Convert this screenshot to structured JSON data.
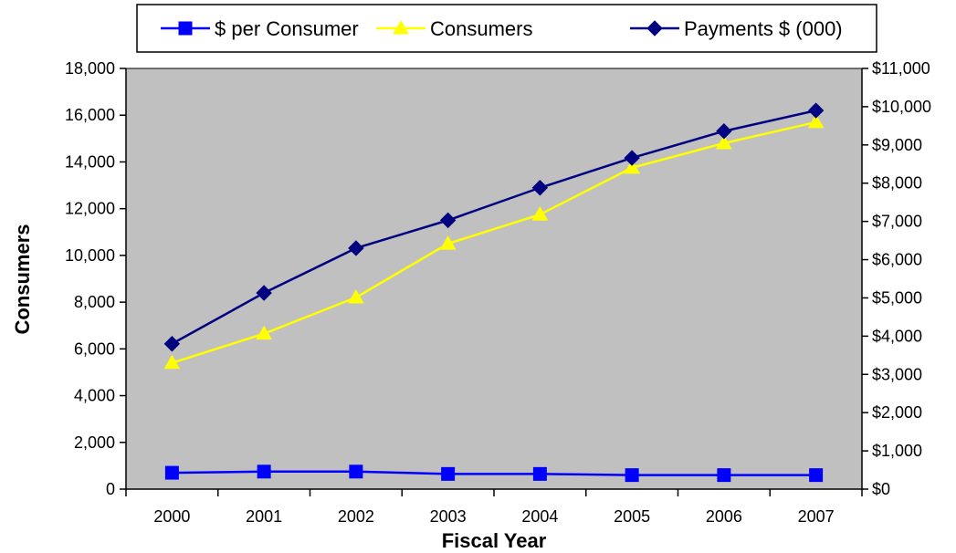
{
  "chart_data": {
    "type": "line",
    "title": "",
    "xlabel": "Fiscal Year",
    "ylabel": "Consumers",
    "y2label": "",
    "categories": [
      "2000",
      "2001",
      "2002",
      "2003",
      "2004",
      "2005",
      "2006",
      "2007"
    ],
    "ylim": [
      0,
      18000
    ],
    "yticks": [
      "0",
      "2,000",
      "4,000",
      "6,000",
      "8,000",
      "10,000",
      "12,000",
      "14,000",
      "16,000",
      "18,000"
    ],
    "y2lim": [
      0,
      11000
    ],
    "y2ticks": [
      "$0",
      "$1,000",
      "$2,000",
      "$3,000",
      "$4,000",
      "$5,000",
      "$6,000",
      "$7,000",
      "$8,000",
      "$9,000",
      "$10,000",
      "$11,000"
    ],
    "legend_position": "top",
    "plot_background": "#c0c0c0",
    "series": [
      {
        "name": "$ per Consumer",
        "axis": "left",
        "color": "#0000ff",
        "marker": "square",
        "values": [
          700,
          750,
          750,
          650,
          650,
          600,
          600,
          600
        ]
      },
      {
        "name": "Consumers",
        "axis": "left",
        "color": "#ffff00",
        "marker": "triangle",
        "values": [
          5400,
          6650,
          8200,
          10500,
          11750,
          13750,
          14800,
          15700
        ]
      },
      {
        "name": "Payments $ (000)",
        "axis": "right",
        "color": "#000080",
        "marker": "diamond",
        "values": [
          3800,
          5130,
          6300,
          7030,
          7880,
          8660,
          9360,
          9900
        ]
      }
    ]
  }
}
